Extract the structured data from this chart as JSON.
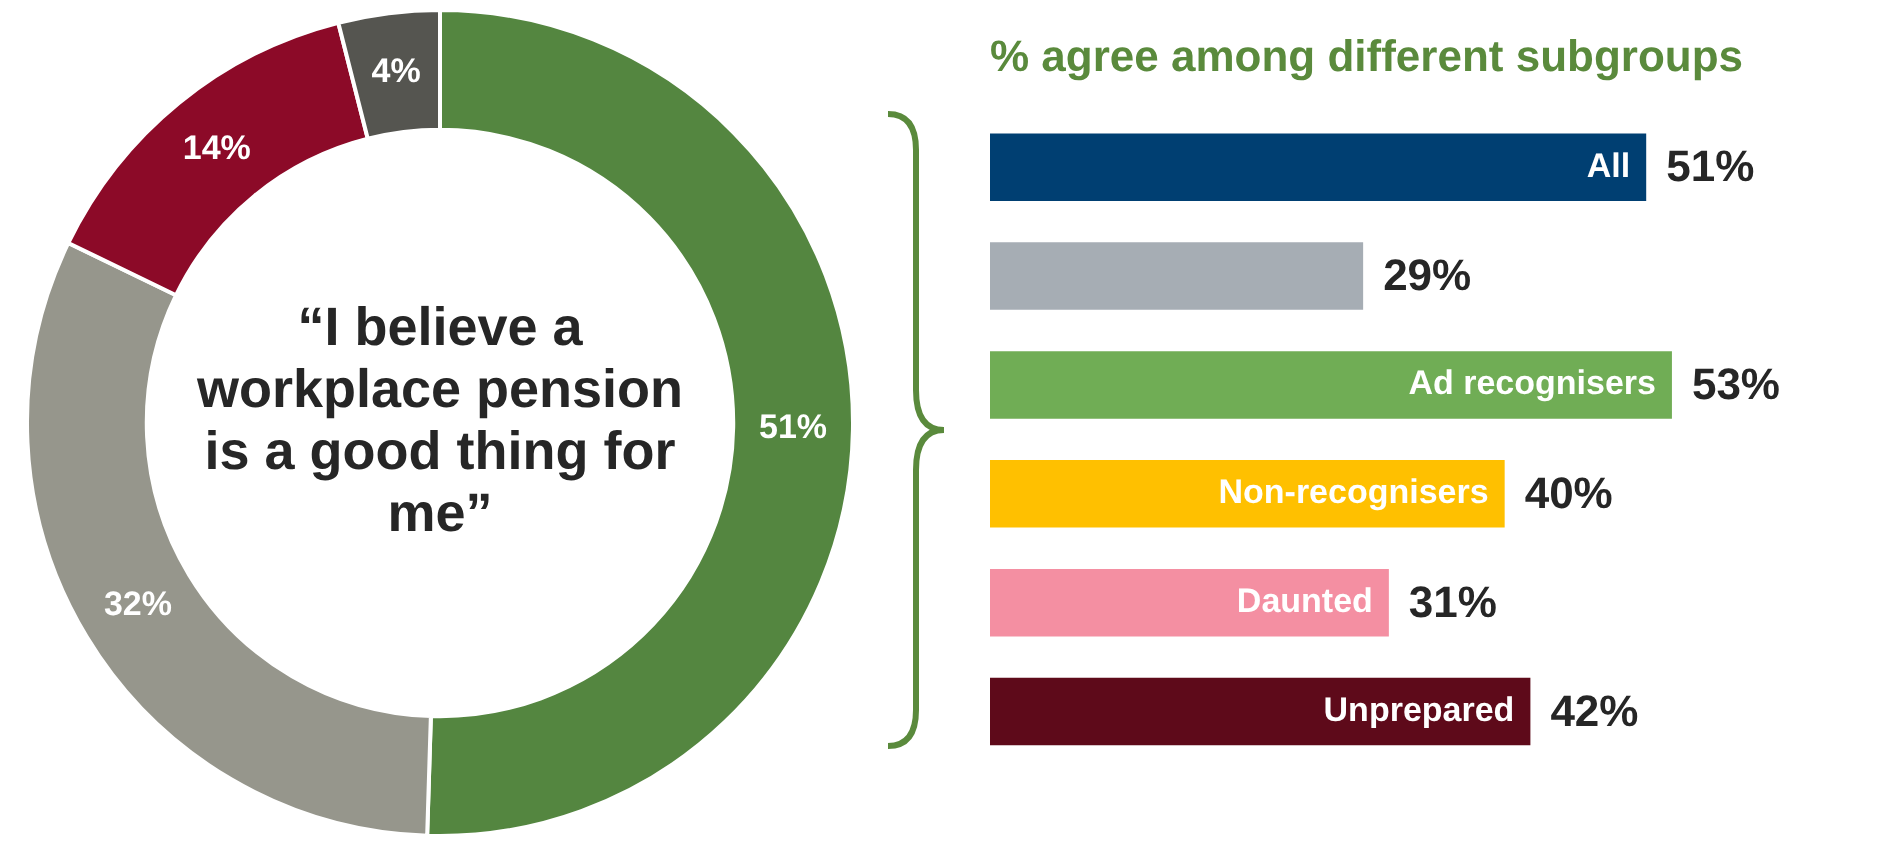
{
  "chart_data": [
    {
      "type": "donut",
      "title": "“I believe a workplace pension is a good thing for me”",
      "categories": [
        null,
        null,
        null,
        null
      ],
      "values": [
        51,
        32,
        14,
        4
      ],
      "colors": [
        "#548640",
        "#96968c",
        "#8c0a28",
        "#555550"
      ],
      "value_labels": [
        "51%",
        "32%",
        "14%",
        "4%"
      ],
      "legend": false
    },
    {
      "type": "bar",
      "orientation": "horizontal",
      "title": "% agree among different subgroups",
      "categories": [
        "All",
        null,
        "Ad recognisers",
        "Non-recognisers",
        "Daunted",
        "Unprepared"
      ],
      "values": [
        51,
        29,
        53,
        40,
        31,
        42
      ],
      "colors": [
        "#003f72",
        "#a6adb4",
        "#70ad55",
        "#ffc000",
        "#f48fa2",
        "#5e0a1a"
      ],
      "value_labels": [
        "51%",
        "29%",
        "53%",
        "40%",
        "31%",
        "42%"
      ],
      "legend": false
    }
  ]
}
